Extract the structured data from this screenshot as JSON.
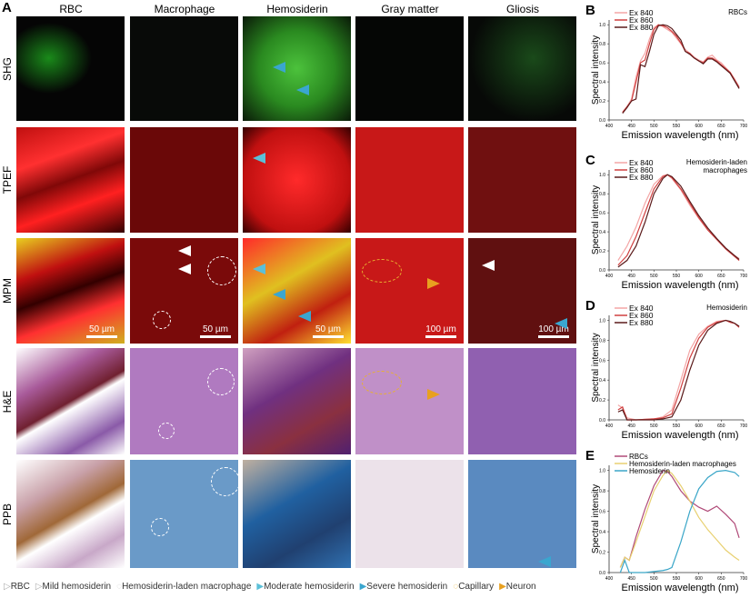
{
  "panel_a": {
    "label": "A",
    "columns": [
      "RBC",
      "Macrophage",
      "Hemosiderin",
      "Gray matter",
      "Gliosis"
    ],
    "rows": [
      "SHG",
      "TPEF",
      "MPM",
      "H&E",
      "PPB"
    ],
    "scale_bars": [
      "50 µm",
      "50 µm",
      "50 µm",
      "100 µm",
      "100 µm"
    ]
  },
  "legend": [
    "RBC",
    "Mild hemosiderin",
    "Hemosiderin-laden macrophage",
    "Moderate hemosiderin",
    "Severe hemosiderin",
    "Capillary",
    "Neuron"
  ],
  "colors": {
    "moderate": "#5bc0d8",
    "severe": "#3aa6cf",
    "neuron": "#e8a020",
    "capillary": "#e8b030"
  },
  "chart_data": [
    {
      "panel": "B",
      "type": "line",
      "annotation": "RBCs",
      "xlabel": "Emission wavelength (nm)",
      "ylabel": "Spectral intensity",
      "xlim": [
        400,
        700
      ],
      "ylim": [
        0,
        1.05
      ],
      "xticks": [
        400,
        450,
        500,
        550,
        600,
        650,
        700
      ],
      "yticks": [
        0.0,
        0.2,
        0.4,
        0.6,
        0.8,
        1.0
      ],
      "legend_position": "top-left",
      "x": [
        430,
        440,
        450,
        460,
        470,
        480,
        490,
        500,
        510,
        520,
        530,
        540,
        550,
        560,
        570,
        580,
        590,
        600,
        610,
        620,
        630,
        640,
        650,
        660,
        670,
        680,
        690
      ],
      "series": [
        {
          "name": "Ex 840",
          "color": "#f4a6a6",
          "values": [
            0.08,
            0.14,
            0.22,
            0.45,
            0.62,
            0.7,
            0.85,
            0.97,
            1.0,
            0.98,
            0.95,
            0.92,
            0.86,
            0.8,
            0.74,
            0.7,
            0.66,
            0.63,
            0.61,
            0.66,
            0.68,
            0.63,
            0.6,
            0.55,
            0.5,
            0.43,
            0.35
          ]
        },
        {
          "name": "Ex 860",
          "color": "#d04040",
          "values": [
            0.08,
            0.14,
            0.2,
            0.4,
            0.6,
            0.63,
            0.8,
            0.95,
            1.0,
            0.99,
            0.97,
            0.93,
            0.88,
            0.81,
            0.72,
            0.7,
            0.65,
            0.62,
            0.6,
            0.65,
            0.65,
            0.62,
            0.58,
            0.54,
            0.5,
            0.42,
            0.34
          ]
        },
        {
          "name": "Ex 880",
          "color": "#5a1a1a",
          "values": [
            0.07,
            0.13,
            0.2,
            0.22,
            0.58,
            0.56,
            0.72,
            0.9,
            0.99,
            1.0,
            0.99,
            0.96,
            0.9,
            0.84,
            0.72,
            0.69,
            0.65,
            0.62,
            0.59,
            0.64,
            0.64,
            0.61,
            0.57,
            0.53,
            0.49,
            0.41,
            0.33
          ]
        }
      ]
    },
    {
      "panel": "C",
      "type": "line",
      "annotation": "Hemosiderin-laden macrophages",
      "xlabel": "Emission wavelength (nm)",
      "ylabel": "Spectral intensity",
      "xlim": [
        400,
        700
      ],
      "ylim": [
        0,
        1.05
      ],
      "xticks": [
        400,
        450,
        500,
        550,
        600,
        650,
        700
      ],
      "yticks": [
        0.0,
        0.2,
        0.4,
        0.6,
        0.8,
        1.0
      ],
      "legend_position": "top-left",
      "x": [
        420,
        440,
        460,
        480,
        500,
        520,
        530,
        540,
        560,
        580,
        600,
        620,
        640,
        660,
        680,
        690
      ],
      "series": [
        {
          "name": "Ex 840",
          "color": "#f4a6a6",
          "values": [
            0.1,
            0.25,
            0.45,
            0.7,
            0.9,
            0.99,
            1.0,
            0.96,
            0.84,
            0.68,
            0.54,
            0.42,
            0.32,
            0.23,
            0.15,
            0.12
          ]
        },
        {
          "name": "Ex 860",
          "color": "#d04040",
          "values": [
            0.05,
            0.15,
            0.35,
            0.6,
            0.85,
            0.98,
            1.0,
            0.97,
            0.85,
            0.7,
            0.55,
            0.42,
            0.32,
            0.22,
            0.14,
            0.1
          ]
        },
        {
          "name": "Ex 880",
          "color": "#5a1a1a",
          "values": [
            0.03,
            0.1,
            0.25,
            0.5,
            0.8,
            0.96,
            1.0,
            0.98,
            0.88,
            0.72,
            0.57,
            0.44,
            0.33,
            0.23,
            0.15,
            0.11
          ]
        }
      ]
    },
    {
      "panel": "D",
      "type": "line",
      "annotation": "Hemosiderin",
      "xlabel": "Emission wavelength (nm)",
      "ylabel": "Spectral intensity",
      "xlim": [
        400,
        700
      ],
      "ylim": [
        0,
        1.05
      ],
      "xticks": [
        400,
        450,
        500,
        550,
        600,
        650,
        700
      ],
      "yticks": [
        0.0,
        0.2,
        0.4,
        0.6,
        0.8,
        1.0
      ],
      "legend_position": "top-left",
      "x": [
        420,
        430,
        440,
        460,
        500,
        520,
        540,
        560,
        580,
        600,
        620,
        640,
        660,
        670,
        680,
        690
      ],
      "series": [
        {
          "name": "Ex 840",
          "color": "#f4a6a6",
          "values": [
            0.15,
            0.12,
            0.02,
            0.0,
            0.01,
            0.03,
            0.1,
            0.4,
            0.7,
            0.86,
            0.94,
            0.99,
            1.0,
            0.98,
            0.97,
            0.93
          ]
        },
        {
          "name": "Ex 860",
          "color": "#d04040",
          "values": [
            0.1,
            0.13,
            0.0,
            0.0,
            0.01,
            0.02,
            0.06,
            0.32,
            0.62,
            0.82,
            0.93,
            0.98,
            1.0,
            0.98,
            0.97,
            0.93
          ]
        },
        {
          "name": "Ex 880",
          "color": "#5a1a1a",
          "values": [
            0.08,
            0.1,
            0.0,
            0.0,
            0.0,
            0.01,
            0.03,
            0.2,
            0.5,
            0.75,
            0.9,
            0.97,
            1.0,
            0.99,
            0.97,
            0.94
          ]
        }
      ]
    },
    {
      "panel": "E",
      "type": "line",
      "annotation": "",
      "xlabel": "Emission wavelength (nm)",
      "ylabel": "Spectral intensity",
      "xlim": [
        400,
        700
      ],
      "ylim": [
        0,
        1.05
      ],
      "xticks": [
        400,
        450,
        500,
        550,
        600,
        650,
        700
      ],
      "yticks": [
        0.0,
        0.2,
        0.4,
        0.6,
        0.8,
        1.0
      ],
      "legend_position": "top-left",
      "x": [
        425,
        435,
        445,
        460,
        480,
        500,
        520,
        530,
        540,
        560,
        580,
        600,
        620,
        640,
        660,
        680,
        690
      ],
      "series": [
        {
          "name": "RBCs",
          "color": "#b04a78",
          "values": [
            0.05,
            0.15,
            0.12,
            0.35,
            0.62,
            0.85,
            1.0,
            0.99,
            0.94,
            0.8,
            0.7,
            0.64,
            0.6,
            0.65,
            0.57,
            0.48,
            0.34
          ]
        },
        {
          "name": "Hemosiderin-laden macrophages",
          "color": "#e8d070",
          "values": [
            0.05,
            0.15,
            0.12,
            0.3,
            0.55,
            0.8,
            0.95,
            1.0,
            0.97,
            0.85,
            0.7,
            0.54,
            0.42,
            0.32,
            0.22,
            0.15,
            0.12
          ]
        },
        {
          "name": "Hemosiderin",
          "color": "#3aa6c8",
          "values": [
            0.0,
            0.12,
            0.0,
            0.0,
            0.0,
            0.01,
            0.02,
            0.03,
            0.05,
            0.3,
            0.6,
            0.82,
            0.93,
            0.99,
            1.0,
            0.98,
            0.94
          ]
        }
      ]
    }
  ]
}
